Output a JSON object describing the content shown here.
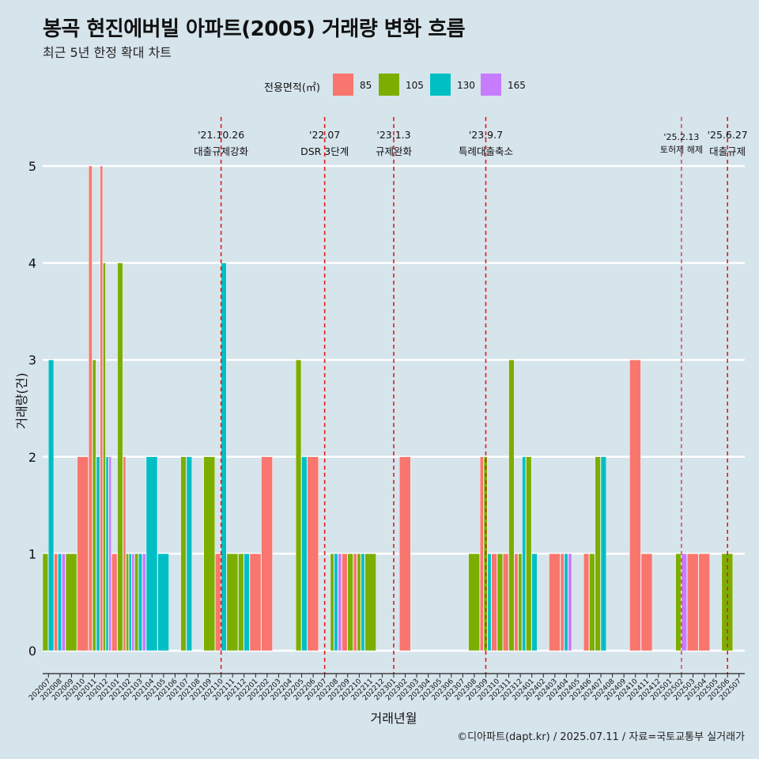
{
  "title": "봉곡 현진에버빌 아파트(2005) 거래량 변화 흐름",
  "subtitle": "최근 5년 한정 확대 차트",
  "caption": "©디아파트(dapt.kr) / 2025.07.11 / 자료=국토교통부 실거래가",
  "colors": {
    "85": "#f8766d",
    "105": "#7cae00",
    "130": "#00bfc4",
    "165": "#c77cff",
    "ref_line": "#e31a1c",
    "grid": "#ffffff",
    "background": "#d6e4ec"
  },
  "chart_data": {
    "type": "bar",
    "xlabel": "거래년월",
    "ylabel": "거래량(건)",
    "ylim": [
      0,
      5
    ],
    "yticks": [
      0,
      1,
      2,
      3,
      4,
      5
    ],
    "grid": true,
    "legend": {
      "title": "전용면적(㎡)",
      "position": "top",
      "items": [
        "85",
        "105",
        "130",
        "165"
      ]
    },
    "categories": [
      "202007",
      "202008",
      "202009",
      "202010",
      "202011",
      "202012",
      "202101",
      "202102",
      "202103",
      "202104",
      "202105",
      "202106",
      "202107",
      "202108",
      "202109",
      "202110",
      "202111",
      "202112",
      "202201",
      "202202",
      "202203",
      "202204",
      "202205",
      "202206",
      "202207",
      "202208",
      "202209",
      "202210",
      "202211",
      "202212",
      "202301",
      "202302",
      "202303",
      "202304",
      "202305",
      "202306",
      "202307",
      "202308",
      "202309",
      "202310",
      "202311",
      "202312",
      "202401",
      "202402",
      "202403",
      "202404",
      "202405",
      "202406",
      "202407",
      "202408",
      "202409",
      "202410",
      "202411",
      "202412",
      "202501",
      "202502",
      "202503",
      "202504",
      "202505",
      "202506",
      "202507"
    ],
    "series": [
      {
        "name": "85",
        "values": [
          0,
          1,
          0,
          2,
          5,
          5,
          1,
          2,
          0,
          0,
          0,
          0,
          0,
          0,
          0,
          1,
          0,
          0,
          1,
          2,
          0,
          0,
          0,
          2,
          0,
          0,
          1,
          1,
          0,
          0,
          0,
          2,
          0,
          0,
          0,
          0,
          0,
          0,
          2,
          1,
          1,
          1,
          0,
          0,
          1,
          1,
          0,
          1,
          0,
          0,
          0,
          3,
          1,
          0,
          0,
          0,
          1,
          1,
          0,
          0,
          0
        ]
      },
      {
        "name": "105",
        "values": [
          1,
          0,
          1,
          0,
          3,
          4,
          4,
          1,
          1,
          0,
          0,
          0,
          2,
          0,
          2,
          0,
          1,
          1,
          0,
          0,
          0,
          0,
          3,
          0,
          0,
          1,
          1,
          1,
          1,
          0,
          0,
          0,
          0,
          0,
          0,
          0,
          0,
          1,
          2,
          1,
          3,
          1,
          2,
          0,
          0,
          0,
          0,
          1,
          2,
          0,
          0,
          0,
          0,
          0,
          0,
          1,
          0,
          0,
          0,
          1,
          0
        ]
      },
      {
        "name": "130",
        "values": [
          3,
          1,
          0,
          0,
          2,
          2,
          0,
          1,
          1,
          2,
          1,
          0,
          2,
          0,
          0,
          4,
          0,
          1,
          0,
          0,
          0,
          0,
          2,
          0,
          0,
          1,
          0,
          1,
          0,
          0,
          0,
          0,
          0,
          0,
          0,
          0,
          0,
          0,
          1,
          0,
          0,
          2,
          1,
          0,
          0,
          1,
          0,
          0,
          2,
          0,
          0,
          0,
          0,
          0,
          0,
          0,
          0,
          0,
          0,
          0,
          0
        ]
      },
      {
        "name": "165",
        "values": [
          0,
          1,
          0,
          0,
          0,
          2,
          0,
          1,
          1,
          0,
          0,
          0,
          0,
          0,
          0,
          0,
          0,
          0,
          0,
          0,
          0,
          0,
          0,
          0,
          0,
          1,
          0,
          0,
          0,
          0,
          0,
          0,
          0,
          0,
          0,
          0,
          0,
          0,
          0,
          0,
          0,
          0,
          0,
          0,
          0,
          1,
          0,
          0,
          0,
          0,
          0,
          0,
          0,
          0,
          0,
          1,
          0,
          0,
          0,
          0,
          0
        ]
      }
    ],
    "annotations": [
      {
        "x": "202110",
        "date": "'21.10.26",
        "text": "대출규제강화"
      },
      {
        "x": "202207",
        "date": "'22.07",
        "text": "DSR 3단계"
      },
      {
        "x": "202301",
        "date": "'23.1.3",
        "text": "규제완화"
      },
      {
        "x": "202309",
        "date": "'23.9.7",
        "text": "특례대출축소"
      },
      {
        "x": "202502",
        "date": "'25.2.13",
        "text": "토허제 해제"
      },
      {
        "x": "202506",
        "date": "'25.6.27",
        "text": "대출규제"
      }
    ]
  }
}
